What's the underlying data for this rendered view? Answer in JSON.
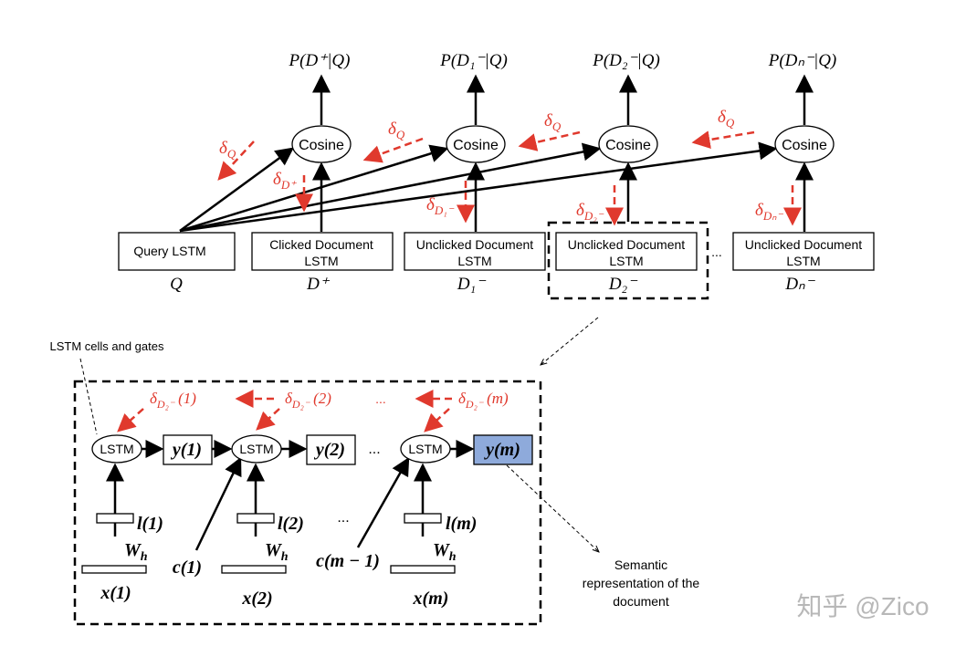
{
  "top": {
    "probabilities": [
      "P(D⁺|Q)",
      "P(D₁⁻|Q)",
      "P(D₂⁻|Q)",
      "P(Dₙ⁻|Q)"
    ],
    "cosines": [
      "Cosine",
      "Cosine",
      "Cosine",
      "Cosine"
    ],
    "query_gradients": [
      {
        "symbol": "δ",
        "subscript": "Q"
      },
      {
        "symbol": "δ",
        "subscript": "Q"
      },
      {
        "symbol": "δ",
        "subscript": "Q"
      },
      {
        "symbol": "δ",
        "subscript": "Q"
      }
    ],
    "doc_gradients": [
      {
        "symbol": "δ",
        "subscript": "D⁺"
      },
      {
        "symbol": "δ",
        "subscript": "D₁⁻"
      },
      {
        "symbol": "δ",
        "subscript": "D₂⁻"
      },
      {
        "symbol": "δ",
        "subscript": "Dₙ⁻"
      }
    ],
    "boxes": [
      [
        "Query LSTM"
      ],
      [
        "Clicked Document",
        "LSTM"
      ],
      [
        "Unclicked Document",
        "LSTM"
      ],
      [
        "Unclicked Document",
        "LSTM"
      ],
      [
        "Unclicked Document",
        "LSTM"
      ]
    ],
    "ellipsis": "...",
    "box_labels": [
      "Q",
      "D⁺",
      "D₁⁻",
      "D₂⁻",
      "Dₙ⁻"
    ]
  },
  "detail": {
    "annotation": "LSTM cells and gates",
    "gradients": [
      {
        "symbol": "δ",
        "subscript": "D₂⁻",
        "argument": "(1)"
      },
      {
        "symbol": "δ",
        "subscript": "D₂⁻",
        "argument": "(2)"
      },
      {
        "symbol": "δ",
        "subscript": "D₂⁻",
        "argument": "(m)"
      }
    ],
    "gradient_ellipsis": "...",
    "cells": [
      "LSTM",
      "LSTM",
      "LSTM"
    ],
    "outputs": [
      "y(1)",
      "y(2)",
      "y(m)"
    ],
    "output_ellipsis": "...",
    "layers": [
      "l(1)",
      "l(2)",
      "l(m)"
    ],
    "weights": [
      {
        "symbol": "W",
        "subscript": "h"
      },
      {
        "symbol": "W",
        "subscript": "h"
      },
      {
        "symbol": "W",
        "subscript": "h"
      }
    ],
    "inputs": [
      "x(1)",
      "x(2)",
      "x(m)"
    ],
    "contexts": [
      "c(1)",
      "c(m − 1)"
    ],
    "context_ellipsis": "...",
    "result_note": [
      "Semantic",
      "representation of the",
      "document"
    ]
  },
  "watermark": "知乎 @Zico"
}
